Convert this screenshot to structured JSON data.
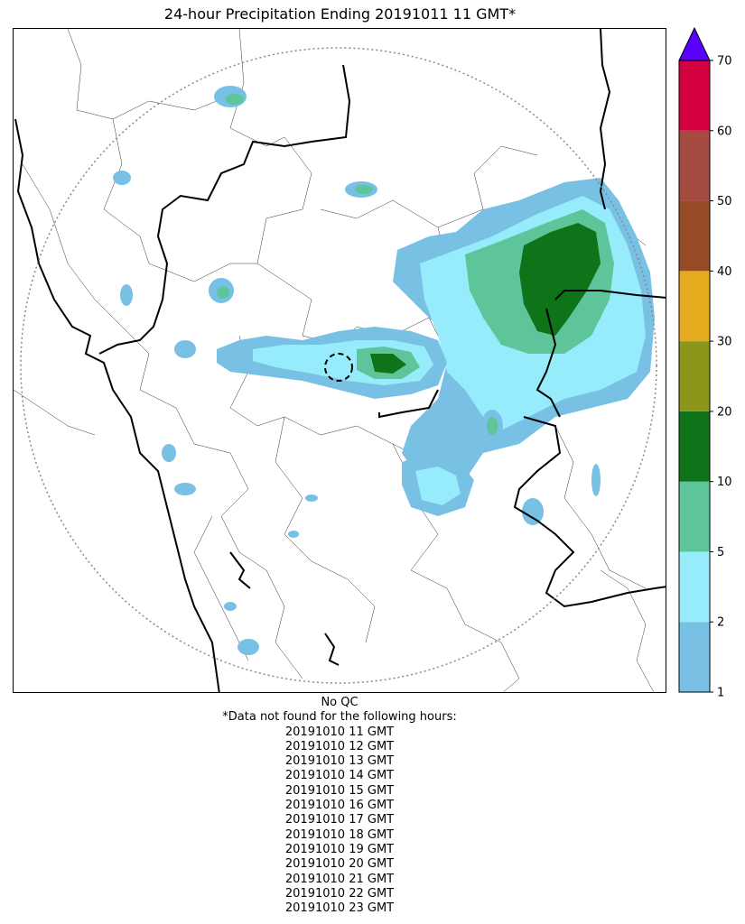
{
  "title": "24-hour Precipitation Ending 20191011 11 GMT*",
  "colorbar": {
    "ticks": [
      "1",
      "2",
      "5",
      "10",
      "20",
      "30",
      "40",
      "50",
      "60",
      "70"
    ],
    "colors": [
      "#78c0e4",
      "#96ecfa",
      "#5ec49a",
      "#0e7319",
      "#8c961a",
      "#e6aa1e",
      "#964b25",
      "#a54a40",
      "#d2003e"
    ],
    "extend_color": "#5a00ff"
  },
  "qc_label": "No QC",
  "missing_header": "*Data not found for the following hours:",
  "missing_hours": [
    "20191010 11 GMT",
    "20191010 12 GMT",
    "20191010 13 GMT",
    "20191010 14 GMT",
    "20191010 15 GMT",
    "20191010 16 GMT",
    "20191010 17 GMT",
    "20191010 18 GMT",
    "20191010 19 GMT",
    "20191010 20 GMT",
    "20191010 21 GMT",
    "20191010 22 GMT",
    "20191010 23 GMT"
  ]
}
